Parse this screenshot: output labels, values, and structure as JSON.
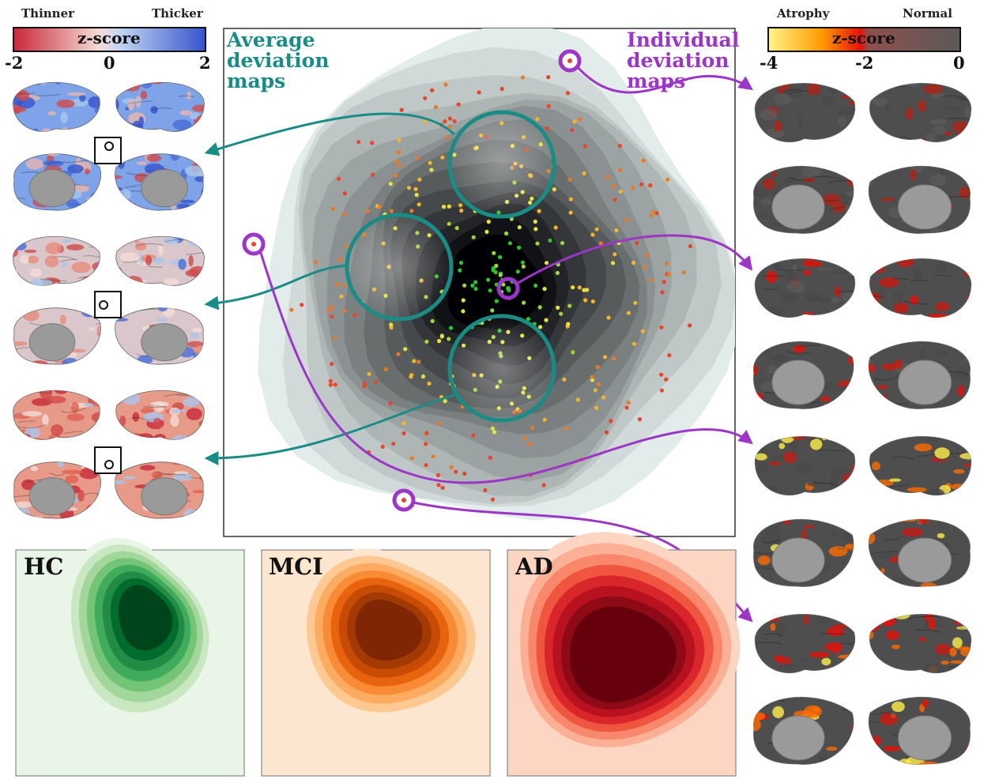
{
  "left_colorbar": {
    "left_end_label": "Thinner",
    "right_end_label": "Thicker",
    "title": "z-score",
    "ticks": [
      "-2",
      "0",
      "2"
    ],
    "colors": [
      "#c8283a",
      "#f2d6d1",
      "#a8c6ee",
      "#3554cc"
    ]
  },
  "right_colorbar": {
    "left_end_label": "Atrophy",
    "right_end_label": "Normal",
    "title": "z-score",
    "ticks": [
      "-4",
      "-2",
      "0"
    ],
    "colors": [
      "#fff48a",
      "#ff8a00",
      "#e8100a",
      "#7f7f7f",
      "#5a5a5a"
    ]
  },
  "center_panel": {
    "average_label": "Average\ndeviation\nmaps",
    "individual_label": "Individual\ndeviation\nmaps",
    "average_color": "#1a8c86",
    "individual_color": "#9c35c8"
  },
  "group_panels": [
    {
      "label": "HC",
      "palette": [
        "#e9f5e6",
        "#c9e8c2",
        "#a3d69a",
        "#74c476",
        "#41ab5d",
        "#238b45",
        "#006d2c",
        "#00441b"
      ]
    },
    {
      "label": "MCI",
      "palette": [
        "#fde6cf",
        "#fdc892",
        "#fdab61",
        "#f98b36",
        "#e8630e",
        "#c84b05",
        "#a33a03",
        "#7f2704"
      ]
    },
    {
      "label": "AD",
      "palette": [
        "#fcd5c3",
        "#fbb096",
        "#f8876b",
        "#f0563f",
        "#d9262a",
        "#b81220",
        "#8f0a17",
        "#67000d"
      ]
    }
  ],
  "marker_colors": {
    "teal": "#1a8c86",
    "purple": "#9c35c8",
    "dot_palette": [
      "#e8452a",
      "#e87a25",
      "#f3b52a",
      "#e8e33a",
      "#9bd83a",
      "#2dc42d"
    ]
  }
}
